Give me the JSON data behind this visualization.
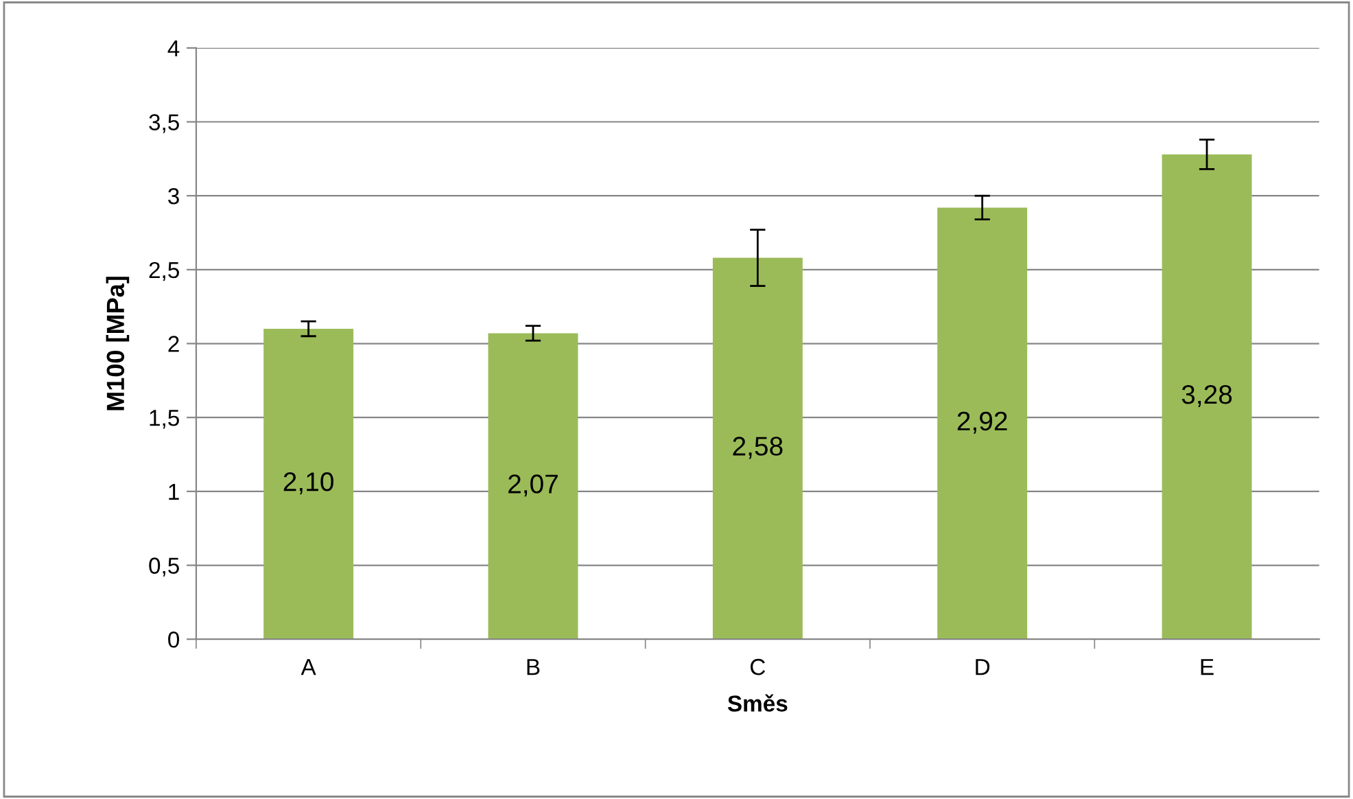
{
  "chart_data": {
    "type": "bar",
    "xlabel": "Směs",
    "ylabel": "M100 [MPa]",
    "categories": [
      "A",
      "B",
      "C",
      "D",
      "E"
    ],
    "values": [
      2.1,
      2.07,
      2.58,
      2.92,
      3.28
    ],
    "errors": [
      0.05,
      0.05,
      0.19,
      0.08,
      0.1
    ],
    "value_labels": [
      "2,10",
      "2,07",
      "2,58",
      "2,92",
      "3,28"
    ],
    "color": "#9bbb59",
    "ylim": [
      0,
      4
    ],
    "yticks": [
      0,
      {
        "value": 0.5,
        "label": "0,5"
      },
      1,
      {
        "value": 1.5,
        "label": "1,5"
      },
      2,
      {
        "value": 2.5,
        "label": "2,5"
      },
      3,
      {
        "value": 3.5,
        "label": "3,5"
      },
      4
    ],
    "grid": "y"
  }
}
